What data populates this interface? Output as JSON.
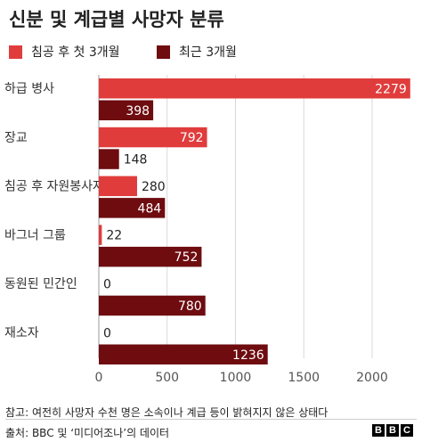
{
  "title": "신분 및 계급별 사망자 분류",
  "legend": [
    {
      "label": "침공 후 첫 3개월",
      "color": "#e03c3c"
    },
    {
      "label": "최근 3개월",
      "color": "#6e0c10"
    }
  ],
  "chart_data": {
    "type": "bar",
    "orientation": "horizontal",
    "categories": [
      "하급 병사",
      "장교",
      "침공 후 자원봉사자",
      "바그너 그룹",
      "동원된 민간인",
      "재소자"
    ],
    "series": [
      {
        "name": "침공 후 첫 3개월",
        "color": "#e03c3c",
        "values": [
          2279,
          792,
          280,
          22,
          0,
          0
        ]
      },
      {
        "name": "최근 3개월",
        "color": "#6e0c10",
        "values": [
          398,
          148,
          484,
          752,
          780,
          1236
        ]
      }
    ],
    "xlim": [
      0,
      2300
    ],
    "xticks": [
      0,
      500,
      1000,
      1500,
      2000
    ],
    "grid": true
  },
  "note": "참고: 여전히 사망자 수천 명은 소속이나 계급 등이 밝혀지지 않은 상태다",
  "source": "출처: BBC 및 ‘미디어조나’의 데이터",
  "logo": [
    "B",
    "B",
    "C"
  ]
}
